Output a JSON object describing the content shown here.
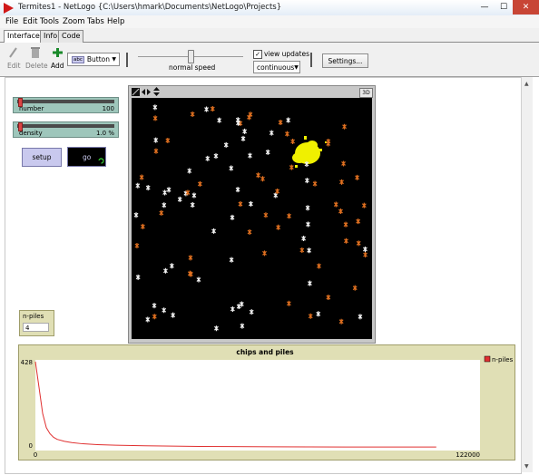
{
  "window": {
    "title": "Termites1 - NetLogo {C:\\Users\\hmark\\Documents\\NetLogo\\Projects}",
    "minimize_label": "—",
    "maximize_label": "☐",
    "close_label": "✕"
  },
  "menu": [
    "File",
    "Edit",
    "Tools",
    "Zoom",
    "Tabs",
    "Help"
  ],
  "tabs": [
    {
      "label": "Interface",
      "active": true
    },
    {
      "label": "Info",
      "active": false
    },
    {
      "label": "Code",
      "active": false
    }
  ],
  "toolbar": {
    "edit_label": "Edit",
    "delete_label": "Delete",
    "add_label": "Add",
    "widget_type": "Button",
    "widget_type_icon": "abc",
    "speed_label": "normal speed",
    "speed_value": 0.5,
    "view_updates_label": "view updates",
    "view_updates_checked": true,
    "update_mode": "continuous",
    "settings_label": "Settings..."
  },
  "widgets": {
    "number_slider": {
      "label": "number",
      "value": "100",
      "fraction": 0.0
    },
    "density_slider": {
      "label": "density",
      "value": "1.0 %",
      "fraction": 0.0
    },
    "setup_button": {
      "label": "setup"
    },
    "go_button": {
      "label": "go",
      "forever": true
    }
  },
  "view": {
    "three_d_label": "3D"
  },
  "monitor": {
    "label": "n-piles",
    "value": "4"
  },
  "chart_data": {
    "type": "line",
    "title": "chips and piles",
    "xlabel": "",
    "ylabel": "",
    "xlim": [
      0,
      122000
    ],
    "ylim": [
      0,
      428
    ],
    "x_min_label": "0",
    "x_max_label": "122000",
    "y_min_label": "0",
    "y_max_label": "428",
    "legend_position": "top-right",
    "series": [
      {
        "name": "n-piles",
        "color": "#e03030",
        "x": [
          0,
          1000,
          2000,
          3000,
          4000,
          5000,
          6000,
          8000,
          10000,
          13000,
          17000,
          22000,
          30000,
          45000,
          65000,
          85000,
          110000
        ],
        "y": [
          428,
          300,
          170,
          100,
          70,
          52,
          42,
          32,
          26,
          20,
          16,
          13,
          10,
          7,
          5,
          4,
          4
        ]
      }
    ]
  }
}
